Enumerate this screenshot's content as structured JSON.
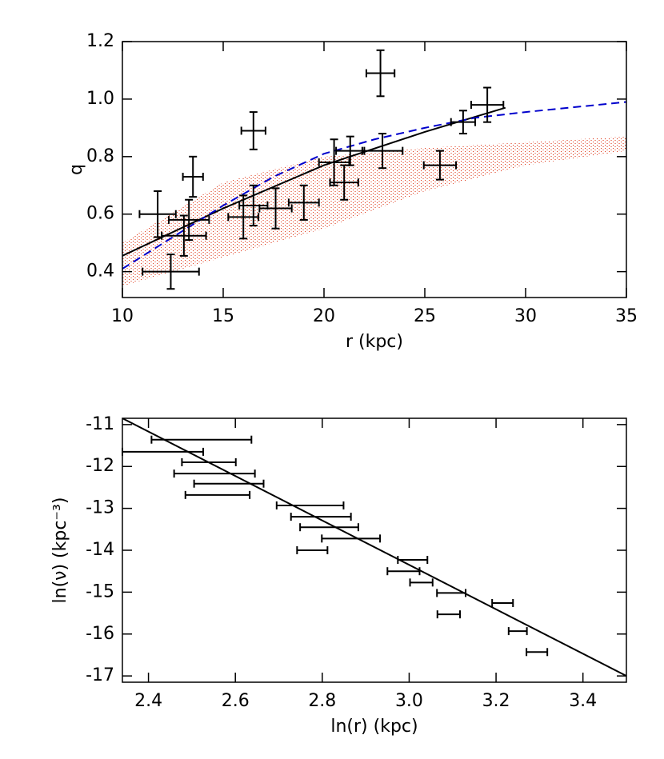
{
  "chart_data": [
    {
      "type": "errorbar",
      "xlabel": "r (kpc)",
      "ylabel": "q",
      "xlim": [
        10,
        35
      ],
      "ylim": [
        0.31,
        1.2
      ],
      "xticks": [
        10,
        15,
        20,
        25,
        30,
        35
      ],
      "yticks": [
        0.4,
        0.6,
        0.8,
        {
          "value": 1,
          "label": "1.0"
        },
        1.2
      ],
      "band": {
        "color": "#e03c1e",
        "x": [
          10,
          15,
          20,
          25,
          30,
          35
        ],
        "lower": [
          0.35,
          0.45,
          0.55,
          0.68,
          0.77,
          0.82
        ],
        "upper": [
          0.5,
          0.71,
          0.8,
          0.83,
          0.85,
          0.87
        ]
      },
      "curves": [
        {
          "color": "#000000",
          "dash": false,
          "x": [
            10,
            15,
            20,
            25,
            29
          ],
          "y": [
            0.455,
            0.62,
            0.77,
            0.886,
            0.97
          ]
        },
        {
          "color": "#0000cc",
          "dash": true,
          "x": [
            10,
            12.5,
            15,
            17.5,
            20,
            22.5,
            25,
            27.5,
            30,
            35
          ],
          "y": [
            0.41,
            0.52,
            0.63,
            0.73,
            0.81,
            0.86,
            0.9,
            0.935,
            0.955,
            0.99
          ]
        }
      ],
      "points": {
        "color": "#000000",
        "x": [
          11.75,
          13.5,
          12.4,
          13.05,
          13.3,
          16.0,
          16.5,
          16.5,
          17.6,
          19.0,
          20.5,
          21.0,
          21.3,
          22.9,
          22.8,
          25.75,
          26.9,
          28.1
        ],
        "y": [
          0.6,
          0.73,
          0.4,
          0.525,
          0.58,
          0.59,
          0.63,
          0.89,
          0.62,
          0.64,
          0.78,
          0.71,
          0.82,
          0.82,
          1.09,
          0.77,
          0.92,
          0.98
        ],
        "xerr": [
          0.9,
          0.5,
          1.4,
          1.1,
          1.0,
          0.75,
          0.7,
          0.6,
          0.8,
          0.75,
          0.75,
          0.7,
          0.7,
          1.0,
          0.7,
          0.8,
          0.6,
          0.8
        ],
        "yerr": [
          0.08,
          0.07,
          0.06,
          0.07,
          0.07,
          0.075,
          0.07,
          0.065,
          0.07,
          0.06,
          0.08,
          0.06,
          0.05,
          0.06,
          0.08,
          0.05,
          0.04,
          0.06
        ]
      }
    },
    {
      "type": "errorbar",
      "xlabel": "ln(r) (kpc)",
      "ylabel": "ln(ν)  (kpc⁻³)",
      "xlim": [
        2.34,
        3.5
      ],
      "ylim": [
        -17.15,
        -10.85
      ],
      "xticks": [
        2.4,
        2.6,
        2.8,
        {
          "value": 3,
          "label": "3.0"
        },
        3.2,
        3.4
      ],
      "yticks": [
        -17,
        -16,
        -15,
        -14,
        -13,
        -12,
        -11
      ],
      "curves": [
        {
          "color": "#000000",
          "dash": false,
          "x": [
            2.34,
            3.5
          ],
          "y": [
            -10.85,
            -17.0
          ]
        }
      ],
      "points": {
        "color": "#000000",
        "x": [
          2.522,
          2.433,
          2.539,
          2.552,
          2.585,
          2.559,
          2.772,
          2.797,
          2.816,
          2.866,
          2.777,
          3.008,
          2.987,
          3.028,
          3.097,
          3.215,
          3.091,
          3.25,
          3.294
        ],
        "y": [
          -11.36,
          -11.65,
          -11.9,
          -12.17,
          -12.41,
          -12.68,
          -12.93,
          -13.2,
          -13.45,
          -13.72,
          -14.0,
          -14.23,
          -14.5,
          -14.77,
          -15.02,
          -15.26,
          -15.53,
          -15.93,
          -16.43
        ],
        "xerr": [
          0.115,
          0.093,
          0.062,
          0.093,
          0.08,
          0.074,
          0.077,
          0.069,
          0.067,
          0.067,
          0.035,
          0.034,
          0.037,
          0.026,
          0.033,
          0.024,
          0.026,
          0.021,
          0.024
        ]
      }
    }
  ]
}
